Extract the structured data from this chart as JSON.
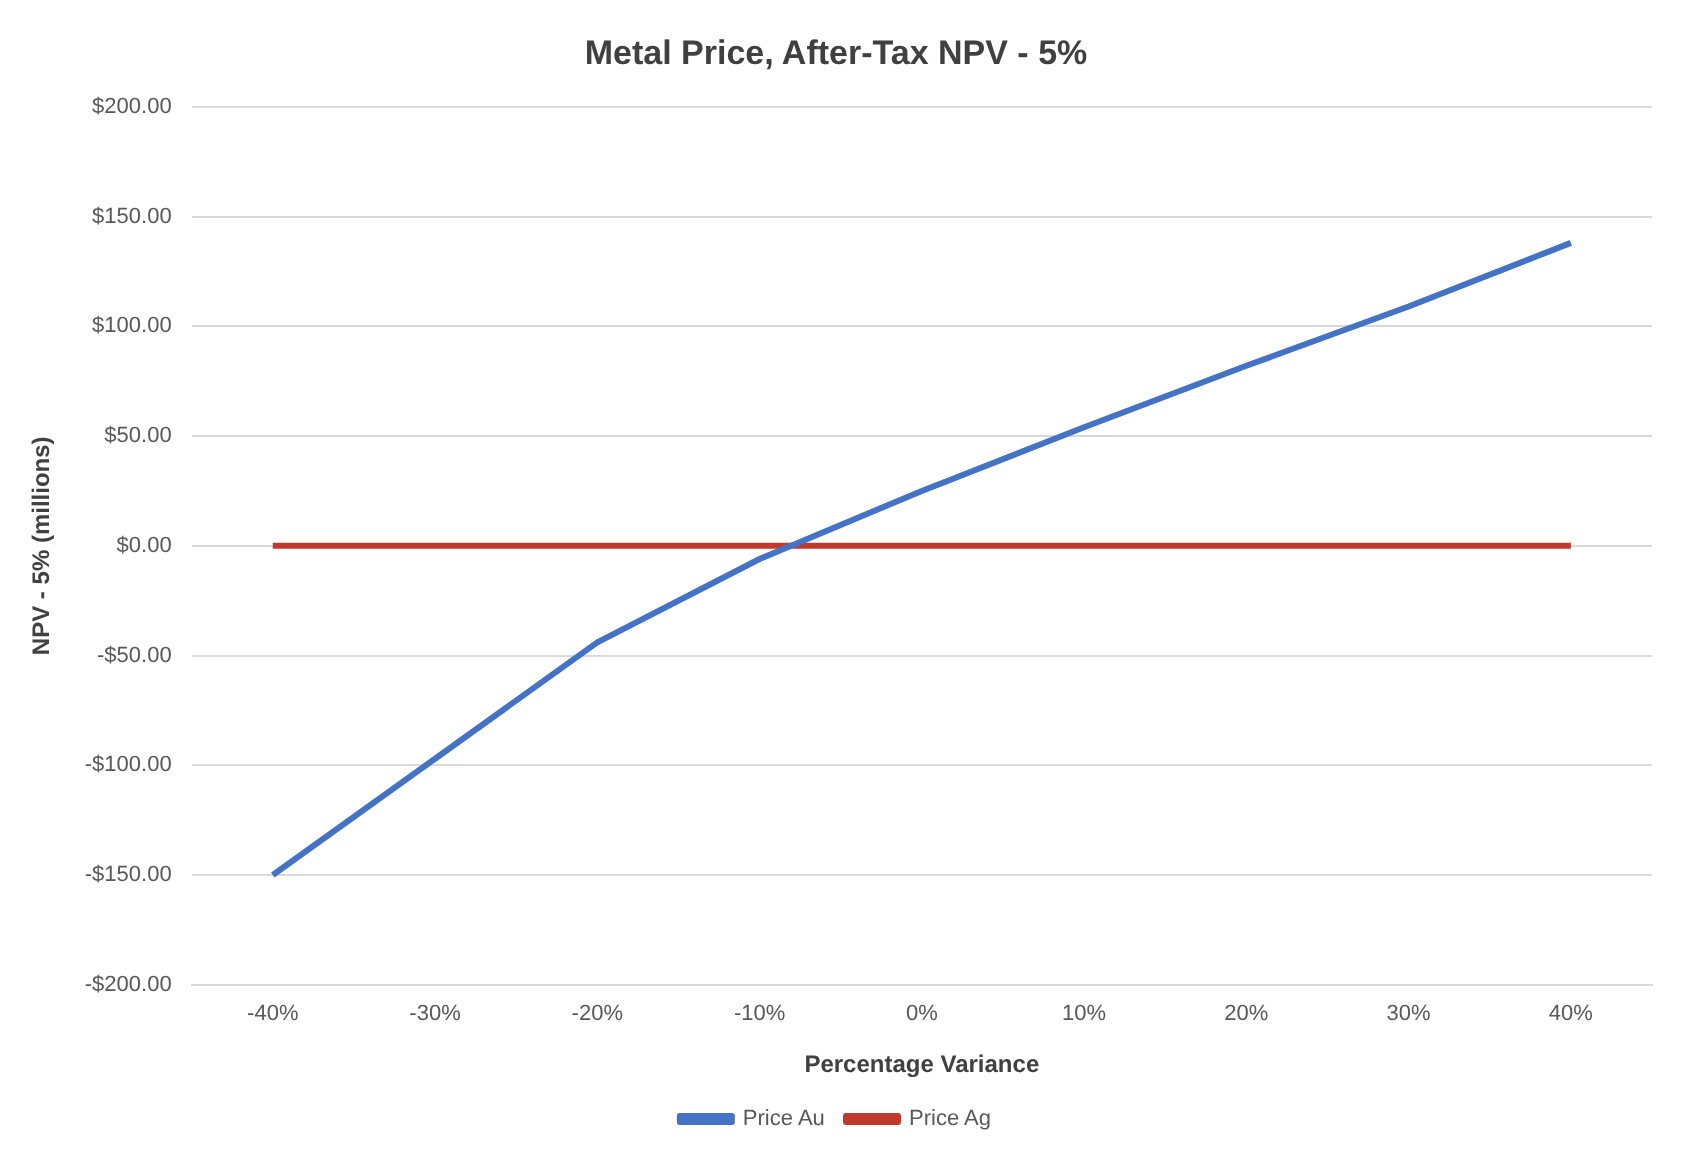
{
  "chart_data": {
    "type": "line",
    "title": "Metal Price, After-Tax NPV - 5%",
    "xlabel": "Percentage Variance",
    "ylabel": "NPV - 5% (millions)",
    "categories": [
      "-40%",
      "-30%",
      "-20%",
      "-10%",
      "0%",
      "10%",
      "20%",
      "30%",
      "40%"
    ],
    "series": [
      {
        "name": "Price Au",
        "color": "#4472c4",
        "values": [
          -150,
          -97,
          -44,
          -6,
          25,
          54,
          82,
          109,
          138
        ]
      },
      {
        "name": "Price Ag",
        "color": "#c0392b",
        "values": [
          0,
          0,
          0,
          0,
          0,
          0,
          0,
          0,
          0
        ]
      }
    ],
    "ylim": [
      -200,
      200
    ],
    "yticks": [
      {
        "value": -200,
        "label": "-$200.00"
      },
      {
        "value": -150,
        "label": "-$150.00"
      },
      {
        "value": -100,
        "label": "-$100.00"
      },
      {
        "value": -50,
        "label": "-$50.00"
      },
      {
        "value": 0,
        "label": "$0.00"
      },
      {
        "value": 50,
        "label": "$50.00"
      },
      {
        "value": 100,
        "label": "$100.00"
      },
      {
        "value": 150,
        "label": "$150.00"
      },
      {
        "value": 200,
        "label": "$200.00"
      }
    ],
    "grid": "y",
    "legend": "bottom",
    "marker": "none",
    "line_style": "solid"
  }
}
